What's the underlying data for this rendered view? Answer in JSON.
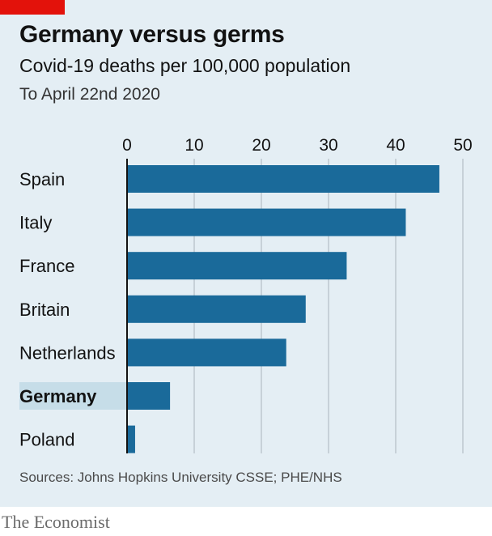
{
  "header": {
    "title": "Germany versus germs",
    "subtitle": "Covid-19 deaths per 100,000 population",
    "dateline": "To April 22nd 2020"
  },
  "footer": {
    "source": "Sources: Johns Hopkins University CSSE; PHE/NHS",
    "brand": "The Economist"
  },
  "colors": {
    "bar": "#1a6a9a",
    "panel": "#e4eef4",
    "highlight": "#c6dde8",
    "brand_red": "#e3120b"
  },
  "chart_data": {
    "type": "bar",
    "orientation": "horizontal",
    "categories": [
      "Spain",
      "Italy",
      "France",
      "Britain",
      "Netherlands",
      "Germany",
      "Poland"
    ],
    "values": [
      46.5,
      41.5,
      32.7,
      26.6,
      23.7,
      6.4,
      1.2
    ],
    "highlighted_category": "Germany",
    "xlim": [
      0,
      50
    ],
    "xticks": [
      0,
      10,
      20,
      30,
      40,
      50
    ],
    "xaxis_position": "top",
    "grid": true
  }
}
